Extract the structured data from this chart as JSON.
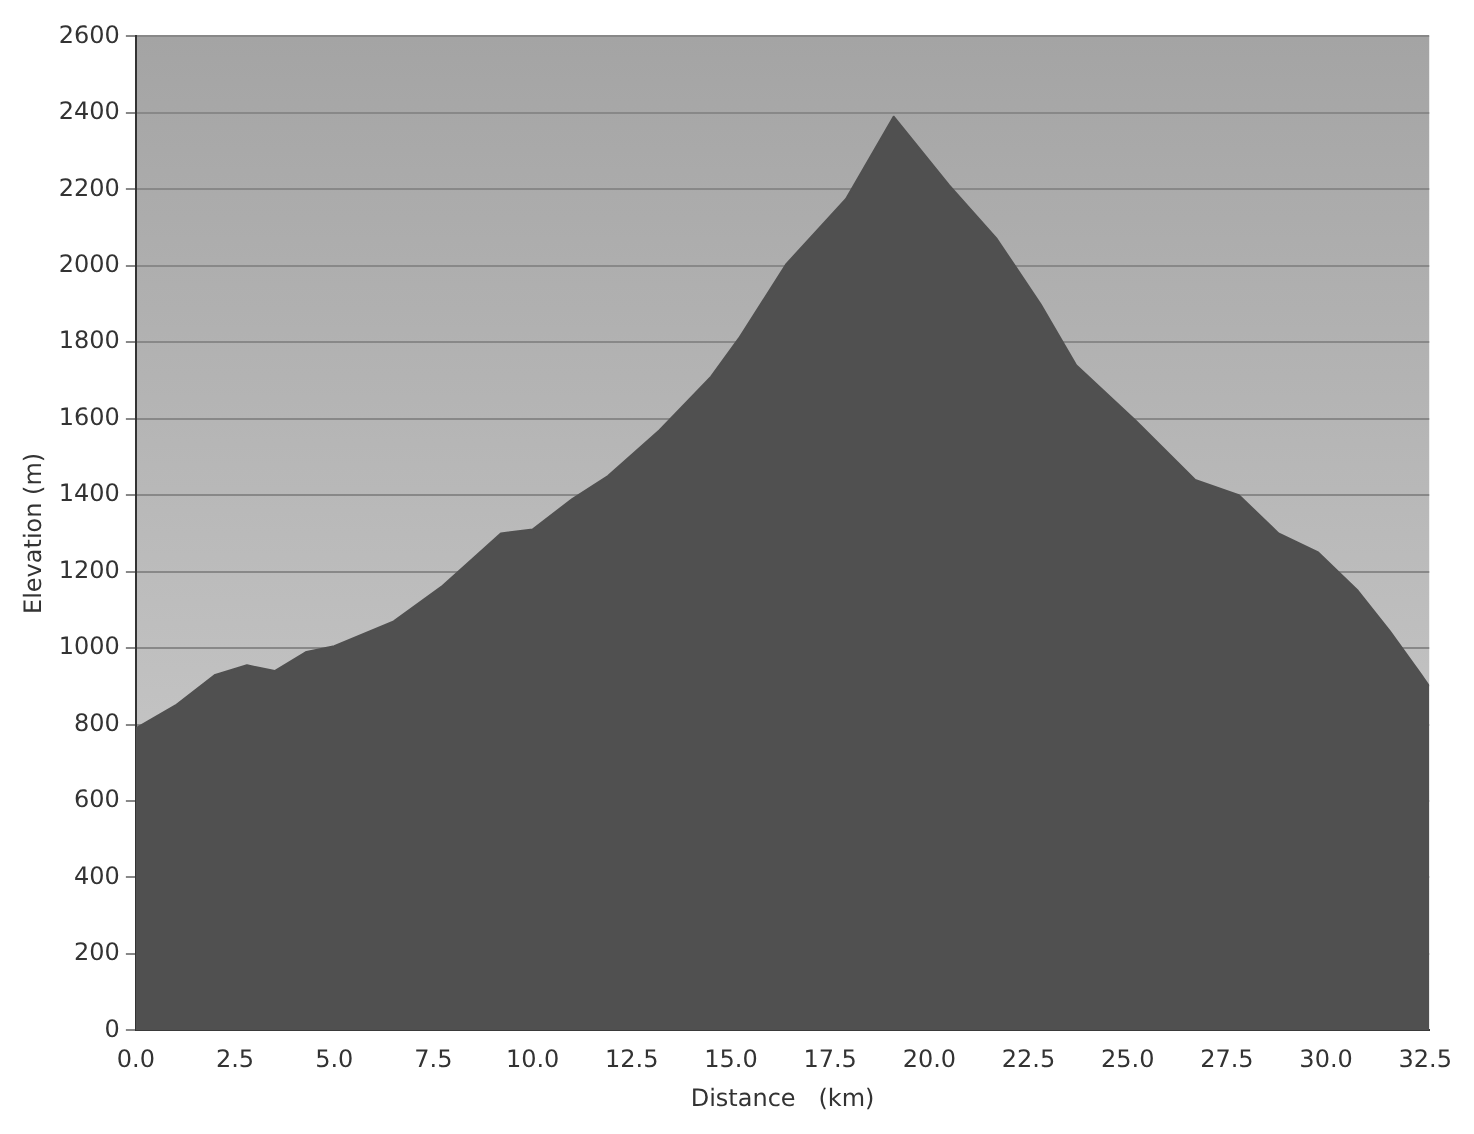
{
  "chart_data": {
    "type": "area",
    "xlabel": "Distance   (km)",
    "ylabel": "Elevation (m)",
    "x": [
      0,
      1.0,
      2.0,
      2.8,
      3.5,
      4.3,
      5.0,
      6.5,
      7.7,
      9.2,
      10.0,
      11.0,
      11.9,
      13.2,
      14.5,
      15.2,
      16.4,
      17.9,
      19.1,
      20.5,
      21.7,
      22.8,
      23.7,
      25.2,
      26.7,
      27.8,
      28.8,
      29.8,
      30.8,
      31.6,
      32.4,
      32.6
    ],
    "values": [
      790,
      850,
      930,
      955,
      940,
      990,
      1005,
      1070,
      1160,
      1300,
      1310,
      1390,
      1450,
      1570,
      1710,
      1810,
      2005,
      2175,
      2390,
      2210,
      2070,
      1900,
      1740,
      1595,
      1440,
      1400,
      1300,
      1250,
      1150,
      1045,
      930,
      900
    ],
    "color": "#505050",
    "xlim": [
      0,
      32.6
    ],
    "xticks": [
      {
        "value": 0,
        "label": "0.0"
      },
      {
        "value": 2.5,
        "label": "2.5"
      },
      {
        "value": 5,
        "label": "5.0"
      },
      {
        "value": 7.5,
        "label": "7.5"
      },
      {
        "value": 10,
        "label": "10.0"
      },
      {
        "value": 12.5,
        "label": "12.5"
      },
      {
        "value": 15,
        "label": "15.0"
      },
      {
        "value": 17.5,
        "label": "17.5"
      },
      {
        "value": 20,
        "label": "20.0"
      },
      {
        "value": 22.5,
        "label": "22.5"
      },
      {
        "value": 25,
        "label": "25.0"
      },
      {
        "value": 27.5,
        "label": "27.5"
      },
      {
        "value": 30,
        "label": "30.0"
      },
      {
        "value": 32.5,
        "label": "32.5"
      }
    ],
    "ylim": [
      0,
      2600
    ],
    "yticks": [
      0,
      200,
      400,
      600,
      800,
      1000,
      1200,
      1400,
      1600,
      1800,
      2000,
      2200,
      2400,
      2600
    ],
    "grid": "y",
    "marker": "none"
  }
}
